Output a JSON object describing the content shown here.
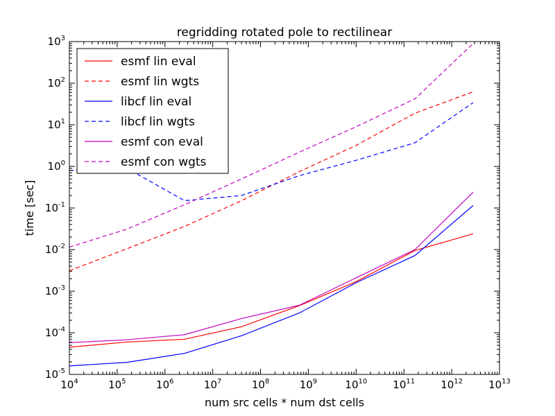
{
  "chart_data": {
    "type": "line",
    "title": "regridding rotated pole to rectilinear",
    "xlabel": "num src cells * num dst cells",
    "ylabel": "time [sec]",
    "xscale": "log",
    "yscale": "log",
    "xlim": [
      10000,
      10000000000000
    ],
    "ylim": [
      1e-05,
      1000
    ],
    "xticks": [
      {
        "base": "10",
        "exp": "4"
      },
      {
        "base": "10",
        "exp": "5"
      },
      {
        "base": "10",
        "exp": "6"
      },
      {
        "base": "10",
        "exp": "7"
      },
      {
        "base": "10",
        "exp": "8"
      },
      {
        "base": "10",
        "exp": "9"
      },
      {
        "base": "10",
        "exp": "10"
      },
      {
        "base": "10",
        "exp": "11"
      },
      {
        "base": "10",
        "exp": "12"
      },
      {
        "base": "10",
        "exp": "13"
      }
    ],
    "yticks": [
      {
        "base": "10",
        "exp": "-5"
      },
      {
        "base": "10",
        "exp": "-4"
      },
      {
        "base": "10",
        "exp": "-3"
      },
      {
        "base": "10",
        "exp": "-2"
      },
      {
        "base": "10",
        "exp": "-1"
      },
      {
        "base": "10",
        "exp": "0"
      },
      {
        "base": "10",
        "exp": "1"
      },
      {
        "base": "10",
        "exp": "2"
      },
      {
        "base": "10",
        "exp": "3"
      }
    ],
    "legend_position": "top-left",
    "grid": false,
    "x": [
      10000,
      160000,
      2560000,
      40000000,
      650000000,
      10000000000,
      170000000000,
      2800000000000
    ],
    "series": [
      {
        "name": "esmf lin eval",
        "color": "#ff0000",
        "dash": "solid",
        "values": [
          4.5e-05,
          6e-05,
          7e-05,
          0.00014,
          0.00045,
          0.0017,
          0.0095,
          0.024
        ]
      },
      {
        "name": "esmf lin wgts",
        "color": "#ff0000",
        "dash": "dashed",
        "values": [
          0.0031,
          0.0105,
          0.036,
          0.15,
          0.75,
          3.2,
          19,
          62
        ]
      },
      {
        "name": "libcf lin eval",
        "color": "#0000ff",
        "dash": "solid",
        "values": [
          1.6e-05,
          1.95e-05,
          3.2e-05,
          8.5e-05,
          0.0003,
          0.0016,
          0.0072,
          0.115
        ]
      },
      {
        "name": "libcf lin wgts",
        "color": "#0000ff",
        "dash": "dashed",
        "values": [
          0.8,
          0.9,
          0.15,
          0.2,
          0.6,
          1.4,
          3.7,
          34
        ]
      },
      {
        "name": "esmf con eval",
        "color": "#bf00bf",
        "dash": "solid",
        "values": [
          5.8e-05,
          6.8e-05,
          9e-05,
          0.00022,
          0.00046,
          0.0021,
          0.01,
          0.24
        ]
      },
      {
        "name": "esmf con wgts",
        "color": "#bf00bf",
        "dash": "dashed",
        "values": [
          0.0115,
          0.031,
          0.12,
          0.5,
          2.2,
          9,
          42,
          900
        ]
      }
    ]
  }
}
